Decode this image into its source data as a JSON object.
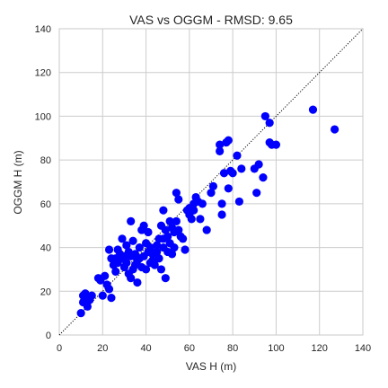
{
  "chart_data": {
    "type": "scatter",
    "title": "VAS vs OGGM - RMSD: 9.65",
    "xlabel": "VAS H (m)",
    "ylabel": "OGGM H (m)",
    "xlim": [
      0,
      140
    ],
    "ylim": [
      0,
      140
    ],
    "xticks": [
      "0",
      "20",
      "40",
      "60",
      "80",
      "100",
      "120",
      "140"
    ],
    "yticks": [
      "0",
      "20",
      "40",
      "60",
      "80",
      "100",
      "120",
      "140"
    ],
    "grid": true,
    "reference_line": "1:1",
    "marker_color": "#0000ff",
    "points": [
      [
        10,
        10
      ],
      [
        11,
        15
      ],
      [
        11,
        18
      ],
      [
        12,
        19
      ],
      [
        13,
        13
      ],
      [
        13,
        17
      ],
      [
        14,
        16
      ],
      [
        15,
        18
      ],
      [
        18,
        26
      ],
      [
        19,
        25
      ],
      [
        20,
        18
      ],
      [
        21,
        27
      ],
      [
        22,
        23
      ],
      [
        23,
        21
      ],
      [
        23,
        39
      ],
      [
        24,
        35
      ],
      [
        24,
        17
      ],
      [
        25,
        32
      ],
      [
        26,
        29
      ],
      [
        26,
        35
      ],
      [
        27,
        33
      ],
      [
        27,
        39
      ],
      [
        28,
        37
      ],
      [
        29,
        35
      ],
      [
        29,
        44
      ],
      [
        30,
        36
      ],
      [
        30,
        31
      ],
      [
        31,
        33
      ],
      [
        31,
        41
      ],
      [
        32,
        38
      ],
      [
        32,
        28
      ],
      [
        33,
        52
      ],
      [
        33,
        26
      ],
      [
        33,
        36
      ],
      [
        34,
        30
      ],
      [
        34,
        43
      ],
      [
        35,
        32
      ],
      [
        35,
        37
      ],
      [
        36,
        34
      ],
      [
        36,
        24
      ],
      [
        37,
        35
      ],
      [
        37,
        40
      ],
      [
        38,
        48
      ],
      [
        38,
        31
      ],
      [
        39,
        50
      ],
      [
        39,
        36
      ],
      [
        40,
        30
      ],
      [
        40,
        42
      ],
      [
        41,
        47
      ],
      [
        41,
        38
      ],
      [
        42,
        33
      ],
      [
        42,
        40
      ],
      [
        43,
        34
      ],
      [
        43,
        37
      ],
      [
        44,
        32
      ],
      [
        45,
        41
      ],
      [
        45,
        38
      ],
      [
        46,
        35
      ],
      [
        46,
        44
      ],
      [
        47,
        50
      ],
      [
        47,
        30
      ],
      [
        48,
        57
      ],
      [
        48,
        44
      ],
      [
        48,
        40
      ],
      [
        49,
        48
      ],
      [
        49,
        26
      ],
      [
        50,
        38
      ],
      [
        50,
        45
      ],
      [
        51,
        52
      ],
      [
        51,
        42
      ],
      [
        52,
        37
      ],
      [
        52,
        49
      ],
      [
        53,
        47
      ],
      [
        53,
        40
      ],
      [
        54,
        65
      ],
      [
        54,
        52
      ],
      [
        55,
        62
      ],
      [
        55,
        48
      ],
      [
        56,
        45
      ],
      [
        57,
        44
      ],
      [
        58,
        39
      ],
      [
        59,
        57
      ],
      [
        60,
        55
      ],
      [
        60,
        58
      ],
      [
        61,
        53
      ],
      [
        62,
        60
      ],
      [
        62,
        57
      ],
      [
        63,
        63
      ],
      [
        64,
        61
      ],
      [
        65,
        53
      ],
      [
        66,
        60
      ],
      [
        68,
        48
      ],
      [
        70,
        65
      ],
      [
        71,
        68
      ],
      [
        74,
        84
      ],
      [
        74,
        87
      ],
      [
        75,
        60
      ],
      [
        75,
        55
      ],
      [
        76,
        74
      ],
      [
        77,
        88
      ],
      [
        78,
        89
      ],
      [
        78,
        67
      ],
      [
        79,
        75
      ],
      [
        80,
        74
      ],
      [
        82,
        82
      ],
      [
        83,
        61
      ],
      [
        84,
        76
      ],
      [
        90,
        76
      ],
      [
        91,
        65
      ],
      [
        92,
        78
      ],
      [
        94,
        72
      ],
      [
        95,
        100
      ],
      [
        97,
        97
      ],
      [
        97,
        88
      ],
      [
        98,
        87
      ],
      [
        100,
        87
      ],
      [
        117,
        103
      ],
      [
        127,
        94
      ]
    ]
  }
}
